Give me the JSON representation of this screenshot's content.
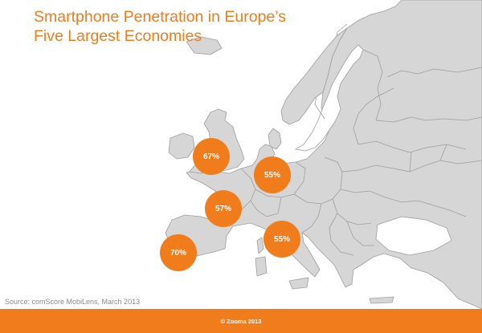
{
  "title": {
    "line1": "Smartphone Penetration in Europe’s",
    "line2": "Five Largest Economies"
  },
  "markers": [
    {
      "country": "United Kingdom",
      "label": "67%",
      "value": 67
    },
    {
      "country": "Germany",
      "label": "55%",
      "value": 55
    },
    {
      "country": "France",
      "label": "57%",
      "value": 57
    },
    {
      "country": "Italy",
      "label": "55%",
      "value": 55
    },
    {
      "country": "Spain",
      "label": "70%",
      "value": 70
    }
  ],
  "source": "Source: comScore MobiLens, March 2013",
  "footer": "© Zooma 2013",
  "colors": {
    "accent": "#f07c1b",
    "land": "#d6d6d6",
    "border": "#9e9e9e",
    "source_text": "#8a8a8a"
  }
}
